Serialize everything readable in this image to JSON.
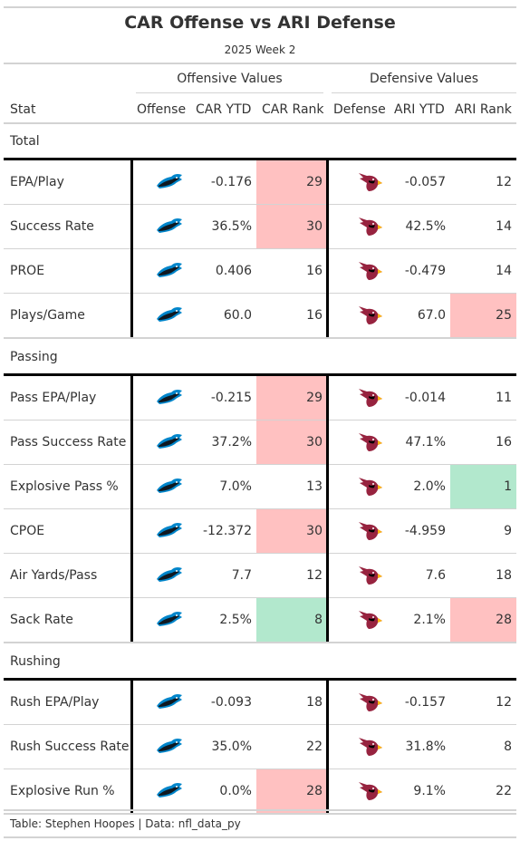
{
  "title": "CAR Offense vs ARI Defense",
  "subtitle": "2025 Week 2",
  "spanners": {
    "offense": "Offensive Values",
    "defense": "Defensive Values"
  },
  "columns": {
    "stat": "Stat",
    "offense": "Offense",
    "car_ytd": "CAR YTD",
    "car_rank": "CAR Rank",
    "defense": "Defense",
    "ari_ytd": "ARI YTD",
    "ari_rank": "ARI Rank"
  },
  "colors": {
    "bad": "#ffc1c1",
    "good": "#b2e8cd",
    "panthers_blue": "#0085ca",
    "cardinals_red": "#97233f"
  },
  "icons": {
    "offense": "panthers-logo-icon",
    "defense": "cardinals-logo-icon"
  },
  "groups": [
    {
      "label": "Total",
      "rows": [
        {
          "stat": "EPA/Play",
          "car_ytd": "-0.176",
          "car_rank": "29",
          "car_rank_status": "bad",
          "ari_ytd": "-0.057",
          "ari_rank": "12",
          "ari_rank_status": ""
        },
        {
          "stat": "Success Rate",
          "car_ytd": "36.5%",
          "car_rank": "30",
          "car_rank_status": "bad",
          "ari_ytd": "42.5%",
          "ari_rank": "14",
          "ari_rank_status": ""
        },
        {
          "stat": "PROE",
          "car_ytd": "0.406",
          "car_rank": "16",
          "car_rank_status": "",
          "ari_ytd": "-0.479",
          "ari_rank": "14",
          "ari_rank_status": ""
        },
        {
          "stat": "Plays/Game",
          "car_ytd": "60.0",
          "car_rank": "16",
          "car_rank_status": "",
          "ari_ytd": "67.0",
          "ari_rank": "25",
          "ari_rank_status": "bad"
        }
      ]
    },
    {
      "label": "Passing",
      "rows": [
        {
          "stat": "Pass EPA/Play",
          "car_ytd": "-0.215",
          "car_rank": "29",
          "car_rank_status": "bad",
          "ari_ytd": "-0.014",
          "ari_rank": "11",
          "ari_rank_status": ""
        },
        {
          "stat": "Pass Success Rate",
          "car_ytd": "37.2%",
          "car_rank": "30",
          "car_rank_status": "bad",
          "ari_ytd": "47.1%",
          "ari_rank": "16",
          "ari_rank_status": ""
        },
        {
          "stat": "Explosive Pass %",
          "car_ytd": "7.0%",
          "car_rank": "13",
          "car_rank_status": "",
          "ari_ytd": "2.0%",
          "ari_rank": "1",
          "ari_rank_status": "good"
        },
        {
          "stat": "CPOE",
          "car_ytd": "-12.372",
          "car_rank": "30",
          "car_rank_status": "bad",
          "ari_ytd": "-4.959",
          "ari_rank": "9",
          "ari_rank_status": ""
        },
        {
          "stat": "Air Yards/Pass",
          "car_ytd": "7.7",
          "car_rank": "12",
          "car_rank_status": "",
          "ari_ytd": "7.6",
          "ari_rank": "18",
          "ari_rank_status": ""
        },
        {
          "stat": "Sack Rate",
          "car_ytd": "2.5%",
          "car_rank": "8",
          "car_rank_status": "good",
          "ari_ytd": "2.1%",
          "ari_rank": "28",
          "ari_rank_status": "bad"
        }
      ]
    },
    {
      "label": "Rushing",
      "rows": [
        {
          "stat": "Rush EPA/Play",
          "car_ytd": "-0.093",
          "car_rank": "18",
          "car_rank_status": "",
          "ari_ytd": "-0.157",
          "ari_rank": "12",
          "ari_rank_status": ""
        },
        {
          "stat": "Rush Success Rate",
          "car_ytd": "35.0%",
          "car_rank": "22",
          "car_rank_status": "",
          "ari_ytd": "31.8%",
          "ari_rank": "8",
          "ari_rank_status": ""
        },
        {
          "stat": "Explosive Run %",
          "car_ytd": "0.0%",
          "car_rank": "28",
          "car_rank_status": "bad",
          "ari_ytd": "9.1%",
          "ari_rank": "22",
          "ari_rank_status": ""
        }
      ]
    }
  ],
  "footer": "Table: Stephen Hoopes | Data: nfl_data_py"
}
